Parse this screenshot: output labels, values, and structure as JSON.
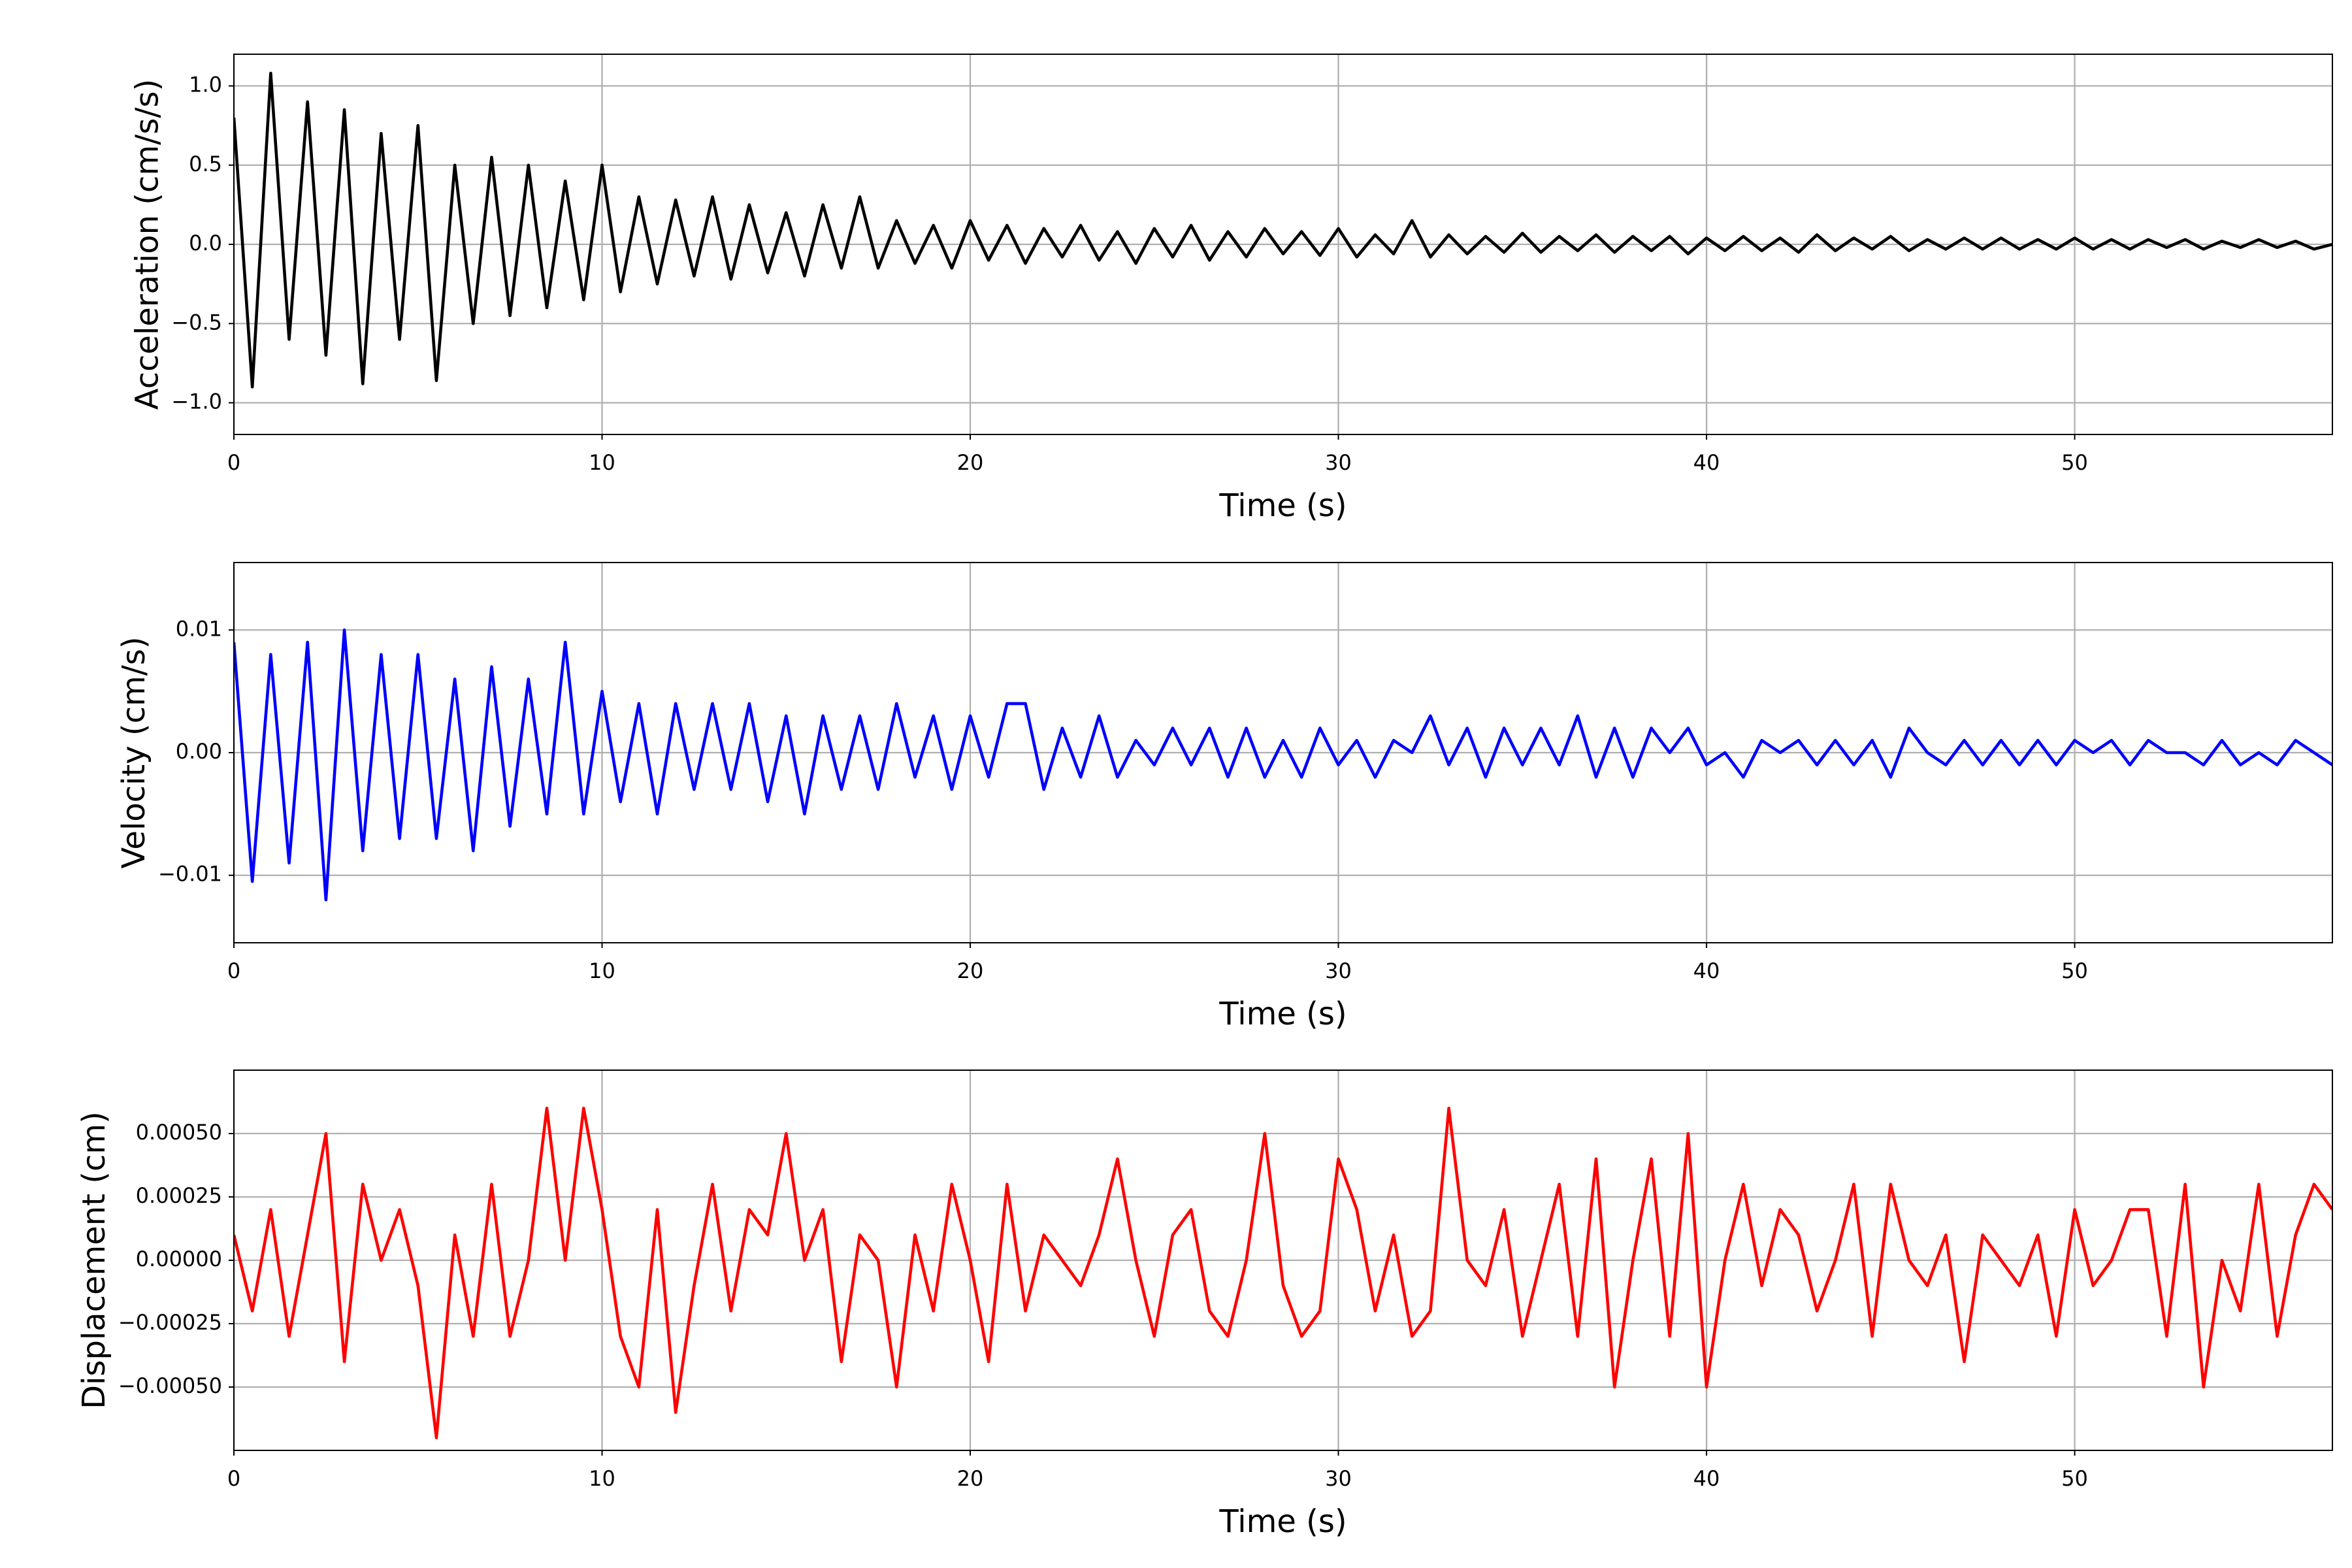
{
  "chart_data": [
    {
      "type": "line",
      "xlabel": "Time (s)",
      "ylabel": "Acceleration (cm/s/s)",
      "color": "#000000",
      "grid": true,
      "xlim": [
        0,
        57
      ],
      "xticks": [
        0,
        10,
        20,
        30,
        40,
        50
      ],
      "ylim": [
        -1.2,
        1.2
      ],
      "yticks": [
        {
          "value": -1.0,
          "label": "−1.0"
        },
        {
          "value": -0.5,
          "label": "−0.5"
        },
        {
          "value": 0.0,
          "label": "0.0"
        },
        {
          "value": 0.5,
          "label": "0.5"
        },
        {
          "value": 1.0,
          "label": "1.0"
        }
      ],
      "x": [
        0,
        0.5,
        1,
        1.5,
        2,
        2.5,
        3,
        3.5,
        4,
        4.5,
        5,
        5.5,
        6,
        6.5,
        7,
        7.5,
        8,
        8.5,
        9,
        9.5,
        10,
        10.5,
        11,
        11.5,
        12,
        12.5,
        13,
        13.5,
        14,
        14.5,
        15,
        15.5,
        16,
        16.5,
        17,
        17.5,
        18,
        18.5,
        19,
        19.5,
        20,
        20.5,
        21,
        21.5,
        22,
        22.5,
        23,
        23.5,
        24,
        24.5,
        25,
        25.5,
        26,
        26.5,
        27,
        27.5,
        28,
        28.5,
        29,
        29.5,
        30,
        30.5,
        31,
        31.5,
        32,
        32.5,
        33,
        33.5,
        34,
        34.5,
        35,
        35.5,
        36,
        36.5,
        37,
        37.5,
        38,
        38.5,
        39,
        39.5,
        40,
        40.5,
        41,
        41.5,
        42,
        42.5,
        43,
        43.5,
        44,
        44.5,
        45,
        45.5,
        46,
        46.5,
        47,
        47.5,
        48,
        48.5,
        49,
        49.5,
        50,
        50.5,
        51,
        51.5,
        52,
        52.5,
        53,
        53.5,
        54,
        54.5,
        55,
        55.5,
        56,
        56.5,
        57
      ],
      "values": [
        0.8,
        -0.9,
        1.08,
        -0.6,
        0.9,
        -0.7,
        0.85,
        -0.88,
        0.7,
        -0.6,
        0.75,
        -0.86,
        0.5,
        -0.5,
        0.55,
        -0.45,
        0.5,
        -0.4,
        0.4,
        -0.35,
        0.5,
        -0.3,
        0.3,
        -0.25,
        0.28,
        -0.2,
        0.3,
        -0.22,
        0.25,
        -0.18,
        0.2,
        -0.2,
        0.25,
        -0.15,
        0.3,
        -0.15,
        0.15,
        -0.12,
        0.12,
        -0.15,
        0.15,
        -0.1,
        0.12,
        -0.12,
        0.1,
        -0.08,
        0.12,
        -0.1,
        0.08,
        -0.12,
        0.1,
        -0.08,
        0.12,
        -0.1,
        0.08,
        -0.08,
        0.1,
        -0.06,
        0.08,
        -0.07,
        0.1,
        -0.08,
        0.06,
        -0.06,
        0.15,
        -0.08,
        0.06,
        -0.06,
        0.05,
        -0.05,
        0.07,
        -0.05,
        0.05,
        -0.04,
        0.06,
        -0.05,
        0.05,
        -0.04,
        0.05,
        -0.06,
        0.04,
        -0.04,
        0.05,
        -0.04,
        0.04,
        -0.05,
        0.06,
        -0.04,
        0.04,
        -0.03,
        0.05,
        -0.04,
        0.03,
        -0.03,
        0.04,
        -0.03,
        0.04,
        -0.03,
        0.03,
        -0.03,
        0.04,
        -0.03,
        0.03,
        -0.03,
        0.03,
        -0.02,
        0.03,
        -0.03,
        0.02,
        -0.02,
        0.03,
        -0.02,
        0.02,
        -0.03,
        0
      ]
    },
    {
      "type": "line",
      "xlabel": "Time (s)",
      "ylabel": "Velocity (cm/s)",
      "color": "#0000ff",
      "grid": true,
      "xlim": [
        0,
        57
      ],
      "xticks": [
        0,
        10,
        20,
        30,
        40,
        50
      ],
      "ylim": [
        -0.0155,
        0.0155
      ],
      "yticks": [
        {
          "value": -0.01,
          "label": "−0.01"
        },
        {
          "value": 0.0,
          "label": "0.00"
        },
        {
          "value": 0.01,
          "label": "0.01"
        }
      ],
      "x": [
        0,
        0.5,
        1,
        1.5,
        2,
        2.5,
        3,
        3.5,
        4,
        4.5,
        5,
        5.5,
        6,
        6.5,
        7,
        7.5,
        8,
        8.5,
        9,
        9.5,
        10,
        10.5,
        11,
        11.5,
        12,
        12.5,
        13,
        13.5,
        14,
        14.5,
        15,
        15.5,
        16,
        16.5,
        17,
        17.5,
        18,
        18.5,
        19,
        19.5,
        20,
        20.5,
        21,
        21.5,
        22,
        22.5,
        23,
        23.5,
        24,
        24.5,
        25,
        25.5,
        26,
        26.5,
        27,
        27.5,
        28,
        28.5,
        29,
        29.5,
        30,
        30.5,
        31,
        31.5,
        32,
        32.5,
        33,
        33.5,
        34,
        34.5,
        35,
        35.5,
        36,
        36.5,
        37,
        37.5,
        38,
        38.5,
        39,
        39.5,
        40,
        40.5,
        41,
        41.5,
        42,
        42.5,
        43,
        43.5,
        44,
        44.5,
        45,
        45.5,
        46,
        46.5,
        47,
        47.5,
        48,
        48.5,
        49,
        49.5,
        50,
        50.5,
        51,
        51.5,
        52,
        52.5,
        53,
        53.5,
        54,
        54.5,
        55,
        55.5,
        56,
        56.5,
        57
      ],
      "values": [
        0.009,
        -0.0105,
        0.008,
        -0.009,
        0.009,
        -0.012,
        0.01,
        -0.008,
        0.008,
        -0.007,
        0.008,
        -0.007,
        0.006,
        -0.008,
        0.007,
        -0.006,
        0.006,
        -0.005,
        0.009,
        -0.005,
        0.005,
        -0.004,
        0.004,
        -0.005,
        0.004,
        -0.003,
        0.004,
        -0.003,
        0.004,
        -0.004,
        0.003,
        -0.005,
        0.003,
        -0.003,
        0.003,
        -0.003,
        0.004,
        -0.002,
        0.003,
        -0.003,
        0.003,
        -0.002,
        0.004,
        0.004,
        -0.003,
        0.002,
        -0.002,
        0.003,
        -0.002,
        0.001,
        -0.001,
        0.002,
        -0.001,
        0.002,
        -0.002,
        0.002,
        -0.002,
        0.001,
        -0.002,
        0.002,
        -0.001,
        0.001,
        -0.002,
        0.001,
        0.0,
        0.003,
        -0.001,
        0.002,
        -0.002,
        0.002,
        -0.001,
        0.002,
        -0.001,
        0.003,
        -0.002,
        0.002,
        -0.002,
        0.002,
        0.0,
        0.002,
        -0.001,
        0.0,
        -0.002,
        0.001,
        0.0,
        0.001,
        -0.001,
        0.001,
        -0.001,
        0.001,
        -0.002,
        0.002,
        0.0,
        -0.001,
        0.001,
        -0.001,
        0.001,
        -0.001,
        0.001,
        -0.001,
        0.001,
        0.0,
        0.001,
        -0.001,
        0.001,
        0.0,
        0.0,
        -0.001,
        0.001,
        -0.001,
        0.0,
        -0.001,
        0.001,
        0.0,
        -0.001
      ]
    },
    {
      "type": "line",
      "xlabel": "Time (s)",
      "ylabel": "Displacement (cm)",
      "color": "#ff0000",
      "grid": true,
      "xlim": [
        0,
        57
      ],
      "xticks": [
        0,
        10,
        20,
        30,
        40,
        50
      ],
      "ylim": [
        -0.00075,
        0.00075
      ],
      "yticks": [
        {
          "value": -0.0005,
          "label": "−0.00050"
        },
        {
          "value": -0.00025,
          "label": "−0.00025"
        },
        {
          "value": 0.0,
          "label": "0.00000"
        },
        {
          "value": 0.00025,
          "label": "0.00025"
        },
        {
          "value": 0.0005,
          "label": "0.00050"
        }
      ],
      "x": [
        0,
        0.5,
        1,
        1.5,
        2,
        2.5,
        3,
        3.5,
        4,
        4.5,
        5,
        5.5,
        6,
        6.5,
        7,
        7.5,
        8,
        8.5,
        9,
        9.5,
        10,
        10.5,
        11,
        11.5,
        12,
        12.5,
        13,
        13.5,
        14,
        14.5,
        15,
        15.5,
        16,
        16.5,
        17,
        17.5,
        18,
        18.5,
        19,
        19.5,
        20,
        20.5,
        21,
        21.5,
        22,
        22.5,
        23,
        23.5,
        24,
        24.5,
        25,
        25.5,
        26,
        26.5,
        27,
        27.5,
        28,
        28.5,
        29,
        29.5,
        30,
        30.5,
        31,
        31.5,
        32,
        32.5,
        33,
        33.5,
        34,
        34.5,
        35,
        35.5,
        36,
        36.5,
        37,
        37.5,
        38,
        38.5,
        39,
        39.5,
        40,
        40.5,
        41,
        41.5,
        42,
        42.5,
        43,
        43.5,
        44,
        44.5,
        45,
        45.5,
        46,
        46.5,
        47,
        47.5,
        48,
        48.5,
        49,
        49.5,
        50,
        50.5,
        51,
        51.5,
        52,
        52.5,
        53,
        53.5,
        54,
        54.5,
        55,
        55.5,
        56,
        56.5,
        57
      ],
      "values": [
        0.0001,
        -0.0002,
        0.0002,
        -0.0003,
        0.0001,
        0.0005,
        -0.0004,
        0.0003,
        0.0,
        0.0002,
        -0.0001,
        -0.0007,
        0.0001,
        -0.0003,
        0.0003,
        -0.0003,
        0.0,
        0.0006,
        0.0,
        0.0006,
        0.0002,
        -0.0003,
        -0.0005,
        0.0002,
        -0.0006,
        -0.0001,
        0.0003,
        -0.0002,
        0.0002,
        0.0001,
        0.0005,
        0.0,
        0.0002,
        -0.0004,
        0.0001,
        0.0,
        -0.0005,
        0.0001,
        -0.0002,
        0.0003,
        0.0,
        -0.0004,
        0.0003,
        -0.0002,
        0.0001,
        0.0,
        -0.0001,
        0.0001,
        0.0004,
        0.0,
        -0.0003,
        0.0001,
        0.0002,
        -0.0002,
        -0.0003,
        0.0,
        0.0005,
        -0.0001,
        -0.0003,
        -0.0002,
        0.0004,
        0.0002,
        -0.0002,
        0.0001,
        -0.0003,
        -0.0002,
        0.0006,
        0.0,
        -0.0001,
        0.0002,
        -0.0003,
        0.0,
        0.0003,
        -0.0003,
        0.0004,
        -0.0005,
        0.0,
        0.0004,
        -0.0003,
        0.0005,
        -0.0005,
        0.0,
        0.0003,
        -0.0001,
        0.0002,
        0.0001,
        -0.0002,
        0.0,
        0.0003,
        -0.0003,
        0.0003,
        0.0,
        -0.0001,
        0.0001,
        -0.0004,
        0.0001,
        0.0,
        -0.0001,
        0.0001,
        -0.0003,
        0.0002,
        -0.0001,
        0.0,
        0.0002,
        0.0002,
        -0.0003,
        0.0003,
        -0.0005,
        0.0,
        -0.0002,
        0.0003,
        -0.0003,
        0.0001,
        0.0003,
        0.0002
      ]
    }
  ]
}
